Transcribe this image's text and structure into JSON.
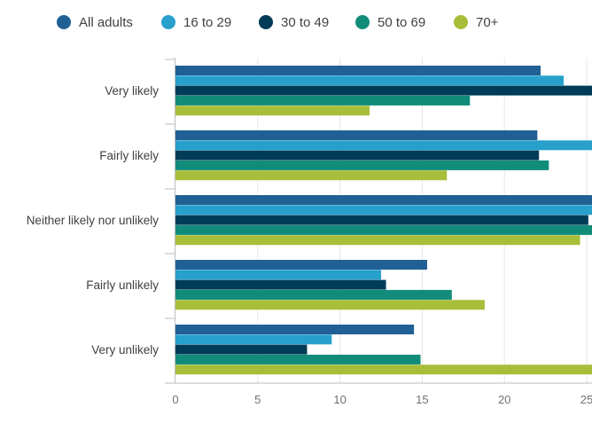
{
  "chart_data": {
    "type": "bar",
    "orientation": "horizontal",
    "legend_position": "top",
    "grid": true,
    "categories": [
      "Very likely",
      "Fairly likely",
      "Neither likely nor unlikely",
      "Fairly unlikely",
      "Very unlikely"
    ],
    "series": [
      {
        "name": "All adults",
        "color": "#206095",
        "values": [
          22.2,
          22.0,
          26.0,
          15.3,
          14.5
        ]
      },
      {
        "name": "16 to 29",
        "color": "#27a0cc",
        "values": [
          23.6,
          25.9,
          25.9,
          12.5,
          9.5
        ]
      },
      {
        "name": "30 to 49",
        "color": "#003c57",
        "values": [
          25.8,
          22.1,
          25.1,
          12.8,
          8.0
        ]
      },
      {
        "name": "50 to 69",
        "color": "#118c7b",
        "values": [
          17.9,
          22.7,
          25.9,
          16.8,
          14.9
        ]
      },
      {
        "name": "70+",
        "color": "#a8bd3a",
        "values": [
          11.8,
          16.5,
          24.6,
          18.8,
          25.9
        ]
      }
    ],
    "xlim": [
      0,
      25
    ],
    "xticks": [
      0,
      5,
      10,
      15,
      20,
      25
    ],
    "xlabel": "",
    "ylabel": "",
    "title": ""
  }
}
